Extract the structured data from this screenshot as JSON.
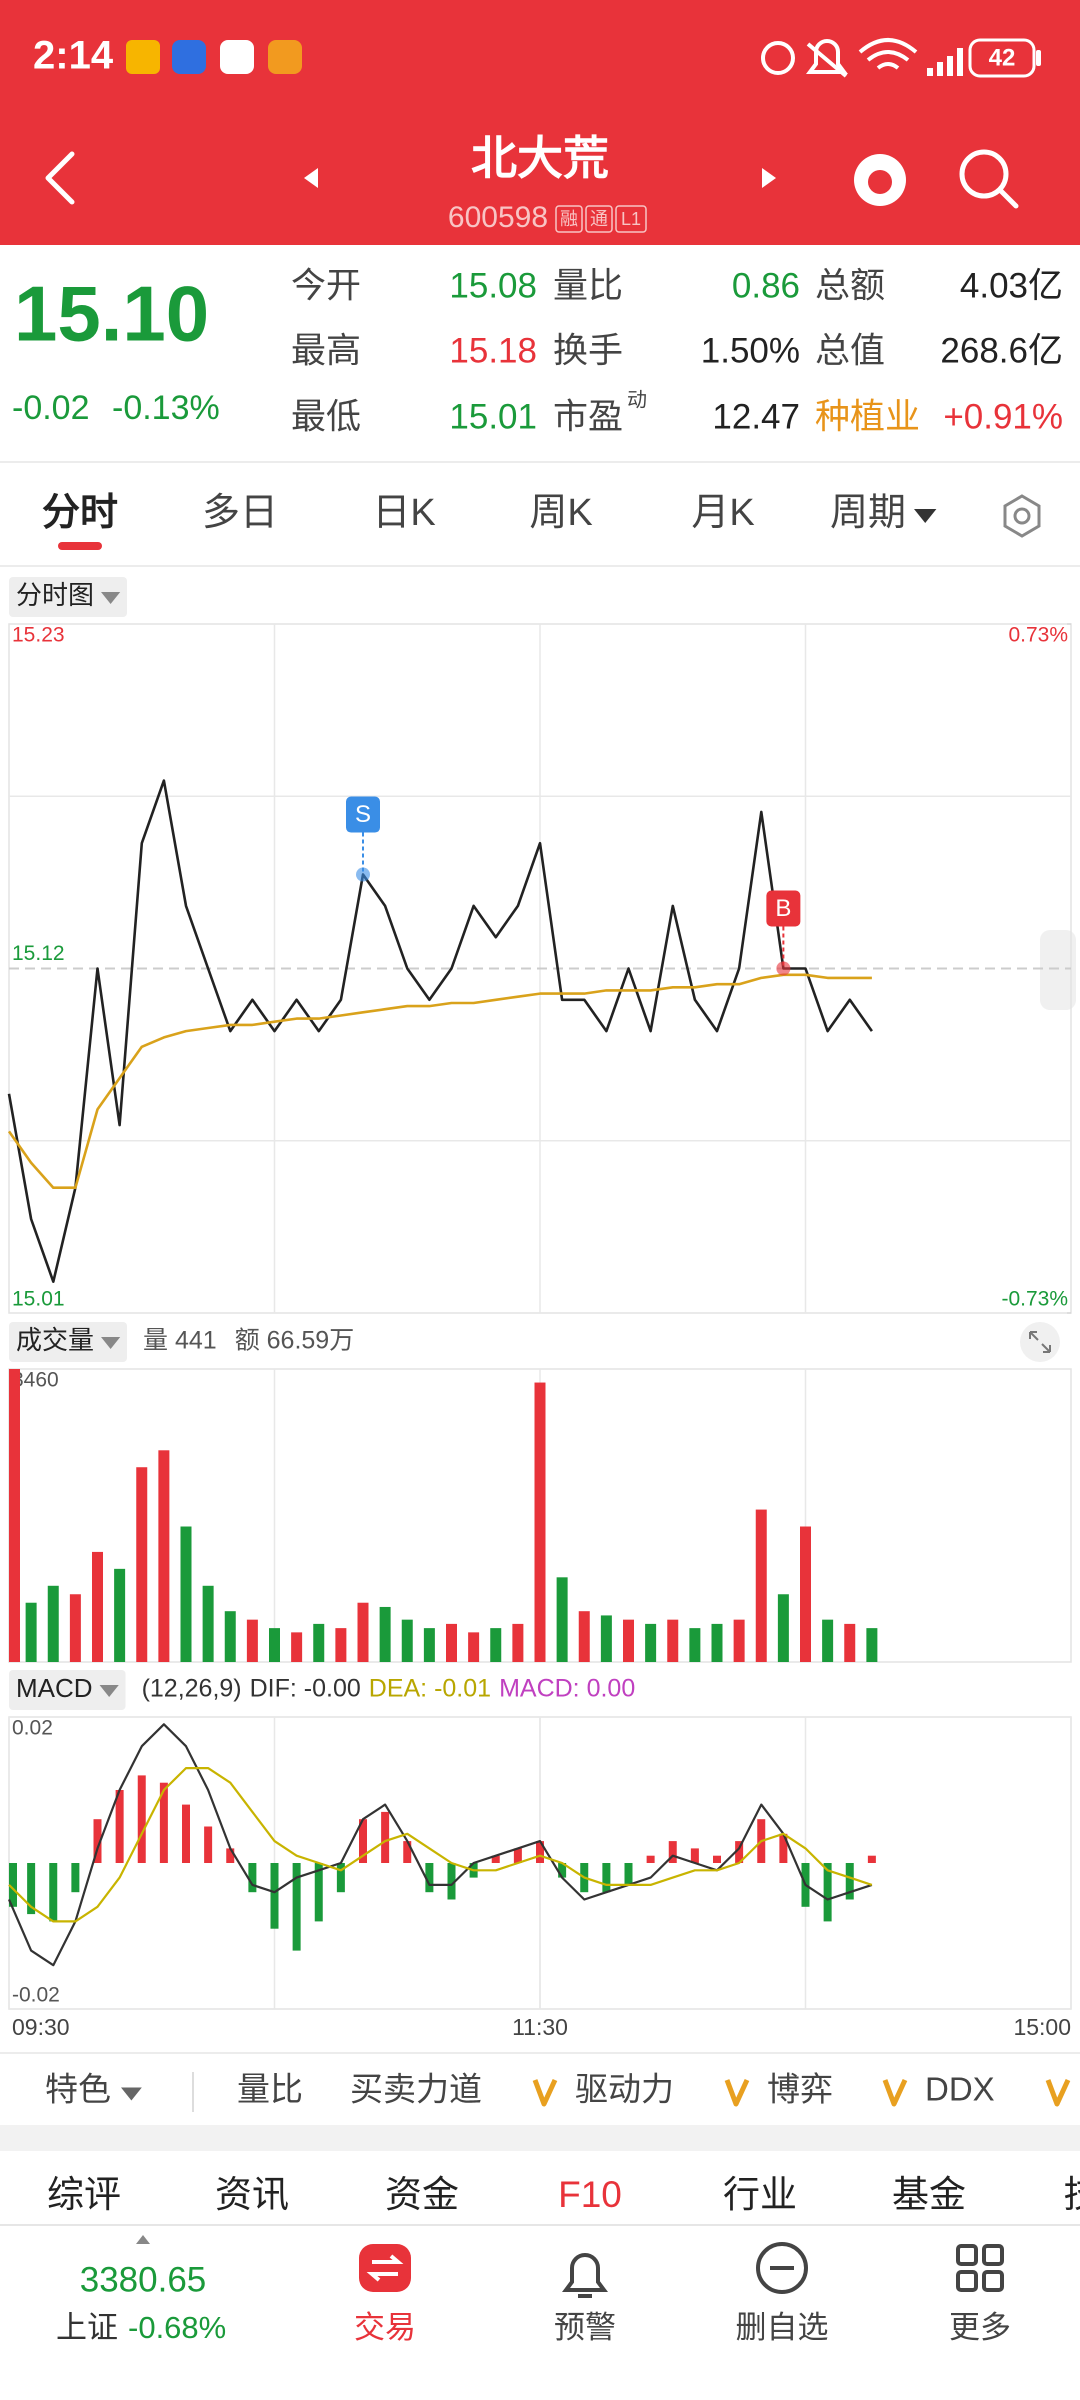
{
  "status_bar": {
    "time": "2:14",
    "battery": "42"
  },
  "header": {
    "title": "北大荒",
    "code": "600598",
    "badges": [
      "融",
      "通",
      "L1"
    ]
  },
  "quote": {
    "price": "15.10",
    "change": "-0.02",
    "change_pct": "-0.13%",
    "color": "#1a9a3a",
    "stats": [
      [
        {
          "label": "今开",
          "value": "15.08",
          "color": "#1a9a3a"
        },
        {
          "label": "量比",
          "value": "0.86",
          "color": "#1a9a3a"
        },
        {
          "label": "总额",
          "value": "4.03亿",
          "color": "#222222"
        }
      ],
      [
        {
          "label": "最高",
          "value": "15.18",
          "color": "#e8333a"
        },
        {
          "label": "换手",
          "value": "1.50%",
          "color": "#222222"
        },
        {
          "label": "总值",
          "value": "268.6亿",
          "color": "#222222"
        }
      ],
      [
        {
          "label": "最低",
          "value": "15.01",
          "color": "#1a9a3a"
        },
        {
          "label": "市盈",
          "sup": "动",
          "value": "12.47",
          "color": "#222222"
        },
        {
          "label": "种植业",
          "label_color": "#e8941a",
          "value": "+0.91%",
          "color": "#e8333a"
        }
      ]
    ]
  },
  "tabs": {
    "items": [
      "分时",
      "多日",
      "日K",
      "周K",
      "月K",
      "周期"
    ],
    "selected": 0
  },
  "chart_data": [
    {
      "type": "line",
      "title": "分时图",
      "x": [
        0,
        5,
        10,
        15,
        20,
        25,
        30,
        35,
        40,
        45,
        50,
        55,
        60,
        65,
        70,
        75,
        80,
        85,
        90,
        95,
        100,
        105,
        110,
        115,
        120,
        125,
        130,
        135,
        140,
        145,
        150,
        155,
        160,
        165,
        170,
        175,
        180,
        185,
        190,
        195
      ],
      "xlim": [
        0,
        240
      ],
      "ylim": [
        15.01,
        15.23
      ],
      "yticks": [
        15.01,
        15.12,
        15.23
      ],
      "y2lim": [
        -0.73,
        0.73
      ],
      "y2ticks": [
        {
          "value": -0.73,
          "label": "-0.73%"
        },
        {
          "value": 0.73,
          "label": "0.73%"
        }
      ],
      "series": [
        {
          "color": "#222222",
          "values": [
            15.08,
            15.04,
            15.02,
            15.05,
            15.12,
            15.07,
            15.16,
            15.18,
            15.14,
            15.12,
            15.1,
            15.11,
            15.1,
            15.11,
            15.1,
            15.11,
            15.15,
            15.14,
            15.12,
            15.11,
            15.12,
            15.14,
            15.13,
            15.14,
            15.16,
            15.11,
            15.11,
            15.1,
            15.12,
            15.1,
            15.14,
            15.11,
            15.1,
            15.12,
            15.17,
            15.12,
            15.12,
            15.1,
            15.11,
            15.1
          ]
        },
        {
          "color": "#d9a21b",
          "values": [
            15.068,
            15.058,
            15.05,
            15.05,
            15.075,
            15.085,
            15.095,
            15.098,
            15.1,
            15.101,
            15.102,
            15.102,
            15.103,
            15.104,
            15.104,
            15.105,
            15.106,
            15.107,
            15.108,
            15.108,
            15.109,
            15.109,
            15.11,
            15.111,
            15.112,
            15.112,
            15.112,
            15.113,
            15.113,
            15.113,
            15.114,
            15.114,
            15.115,
            15.115,
            15.117,
            15.118,
            15.118,
            15.117,
            15.117,
            15.117
          ]
        }
      ],
      "markers": [
        {
          "label": "S",
          "x": 80,
          "value": 15.15,
          "color": "#3a8ee6"
        },
        {
          "label": "B",
          "x": 175,
          "value": 15.12,
          "color": "#e8333a"
        }
      ]
    },
    {
      "type": "bar",
      "title": "成交量",
      "info": [
        "量 441",
        "额 66.59万"
      ],
      "x": [
        0,
        5,
        10,
        15,
        20,
        25,
        30,
        35,
        40,
        45,
        50,
        55,
        60,
        65,
        70,
        75,
        80,
        85,
        90,
        95,
        100,
        105,
        110,
        115,
        120,
        125,
        130,
        135,
        140,
        145,
        150,
        155,
        160,
        165,
        170,
        175,
        180,
        185,
        190,
        195
      ],
      "xlim": [
        0,
        240
      ],
      "ylim": [
        0,
        3460
      ],
      "yticks": [
        3460
      ],
      "series": [
        {
          "up_color": "#e8333a",
          "down_color": "#1a9a3a",
          "values": [
            3460,
            700,
            900,
            800,
            1300,
            1100,
            2300,
            2500,
            1600,
            900,
            600,
            500,
            400,
            350,
            450,
            400,
            700,
            650,
            500,
            400,
            450,
            350,
            400,
            450,
            3300,
            1000,
            600,
            550,
            500,
            450,
            500,
            400,
            450,
            500,
            1800,
            800,
            1600,
            500,
            450,
            400
          ]
        }
      ]
    },
    {
      "type": "bar",
      "title": "MACD",
      "info": [
        {
          "text": "(12,26,9)",
          "color": "#333333"
        },
        {
          "text": "DIF: -0.00",
          "color": "#333333"
        },
        {
          "text": "DEA: -0.01",
          "color": "#b8a600"
        },
        {
          "text": "MACD: 0.00",
          "color": "#c040c0"
        }
      ],
      "x": [
        0,
        5,
        10,
        15,
        20,
        25,
        30,
        35,
        40,
        45,
        50,
        55,
        60,
        65,
        70,
        75,
        80,
        85,
        90,
        95,
        100,
        105,
        110,
        115,
        120,
        125,
        130,
        135,
        140,
        145,
        150,
        155,
        160,
        165,
        170,
        175,
        180,
        185,
        190,
        195
      ],
      "xlim": [
        0,
        240
      ],
      "xticks": [
        {
          "value": 0,
          "label": "09:30"
        },
        {
          "value": 120,
          "label": "11:30"
        },
        {
          "value": 240,
          "label": "15:00"
        }
      ],
      "ylim": [
        -0.02,
        0.02
      ],
      "yticks": [
        0.02,
        -0.02
      ],
      "series": [
        {
          "type": "bar",
          "up_color": "#e8333a",
          "down_color": "#1a9a3a",
          "values": [
            -0.006,
            -0.007,
            -0.008,
            -0.004,
            0.006,
            0.01,
            0.012,
            0.011,
            0.008,
            0.005,
            0.002,
            -0.004,
            -0.009,
            -0.012,
            -0.008,
            -0.004,
            0.006,
            0.007,
            0.003,
            -0.004,
            -0.005,
            -0.002,
            0.001,
            0.002,
            0.003,
            -0.002,
            -0.004,
            -0.004,
            -0.003,
            0.001,
            0.003,
            0.002,
            0.001,
            0.003,
            0.006,
            0.004,
            -0.006,
            -0.008,
            -0.005,
            0.001
          ]
        },
        {
          "type": "line",
          "color": "#333333",
          "values": [
            -0.005,
            -0.012,
            -0.014,
            -0.008,
            0.002,
            0.01,
            0.016,
            0.019,
            0.016,
            0.01,
            0.002,
            -0.003,
            -0.004,
            -0.002,
            -0.001,
            0,
            0.006,
            0.008,
            0.003,
            -0.003,
            -0.003,
            0,
            0.001,
            0.002,
            0.003,
            -0.002,
            -0.005,
            -0.004,
            -0.003,
            -0.002,
            0.001,
            0,
            -0.001,
            0.002,
            0.008,
            0.004,
            -0.003,
            -0.005,
            -0.004,
            -0.003
          ]
        },
        {
          "type": "line",
          "color": "#c8b400",
          "values": [
            -0.003,
            -0.006,
            -0.008,
            -0.008,
            -0.006,
            -0.002,
            0.004,
            0.01,
            0.013,
            0.013,
            0.011,
            0.007,
            0.003,
            0.001,
            0,
            -0.001,
            0.001,
            0.003,
            0.004,
            0.002,
            0,
            -0.001,
            -0.001,
            0,
            0.001,
            0,
            -0.002,
            -0.003,
            -0.003,
            -0.003,
            -0.002,
            -0.001,
            -0.001,
            0,
            0.003,
            0.004,
            0.002,
            -0.001,
            -0.002,
            -0.003
          ]
        }
      ]
    }
  ],
  "indicators": [
    "特色",
    "量比",
    "买卖力道",
    "驱动力",
    "博弈",
    "DDX"
  ],
  "bottom_tabs": {
    "items": [
      "综评",
      "资讯",
      "资金",
      "F10",
      "行业",
      "基金",
      "技"
    ],
    "selected": 3
  },
  "bottom_nav": {
    "index_value": "3380.65",
    "index_name": "上证",
    "index_change": "-0.68%",
    "items": [
      "交易",
      "预警",
      "删自选",
      "更多"
    ]
  }
}
